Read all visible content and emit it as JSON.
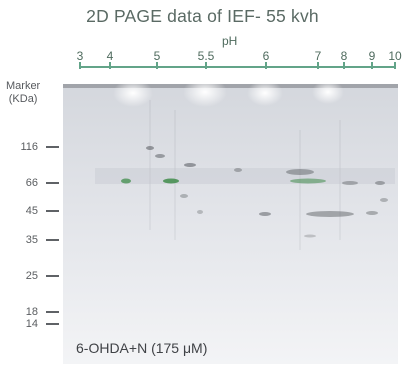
{
  "title": "2D PAGE data of IEF- 55 kvh",
  "ph_axis": {
    "label": "pH",
    "ticks": [
      "3",
      "4",
      "5",
      "5.5",
      "6",
      "7",
      "8",
      "9",
      "10"
    ]
  },
  "marker": {
    "label_line1": "Marker",
    "label_line2": "(KDa)",
    "sizes": [
      "116",
      "66",
      "45",
      "35",
      "25",
      "18",
      "14"
    ]
  },
  "sample_label": "6-OHDA+N (175 μM)",
  "colors": {
    "title": "#5a6a64",
    "axis_green": "#63a489",
    "gel_background": "#dfe1e6",
    "spot_green": "#3f8c4a",
    "spot_dark": "#5f6367"
  }
}
